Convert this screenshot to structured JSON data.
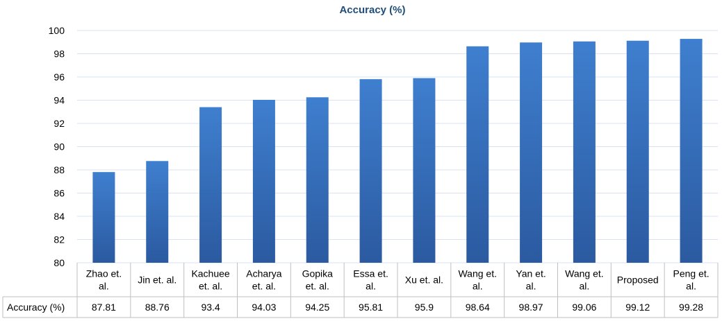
{
  "chart_data": {
    "type": "bar",
    "title": "Accuracy (%)",
    "series_label": "Accuracy (%)",
    "categories": [
      [
        "Zhao et.",
        "al."
      ],
      [
        "Jin et. al."
      ],
      [
        "Kachuee",
        "et. al."
      ],
      [
        "Acharya",
        "et. al."
      ],
      [
        "Gopika",
        "et. al."
      ],
      [
        "Essa et.",
        "al."
      ],
      [
        "Xu et. al."
      ],
      [
        "Wang et.",
        "al."
      ],
      [
        "Yan et.",
        "al."
      ],
      [
        "Wang et.",
        "al."
      ],
      [
        "Proposed"
      ],
      [
        "Peng et.",
        "al."
      ]
    ],
    "values": [
      87.81,
      88.76,
      93.4,
      94.03,
      94.25,
      95.81,
      95.9,
      98.64,
      98.97,
      99.06,
      99.12,
      99.28
    ],
    "value_labels": [
      "87.81",
      "88.76",
      "93.4",
      "94.03",
      "94.25",
      "95.81",
      "95.9",
      "98.64",
      "98.97",
      "99.06",
      "99.12",
      "99.28"
    ],
    "ylim": [
      80,
      100
    ],
    "yticks": [
      80,
      82,
      84,
      86,
      88,
      90,
      92,
      94,
      96,
      98,
      100
    ],
    "grid": true,
    "legend": "data-table",
    "bar_color_top": "#3f7fcf",
    "bar_color_bottom": "#2b5aa0"
  }
}
